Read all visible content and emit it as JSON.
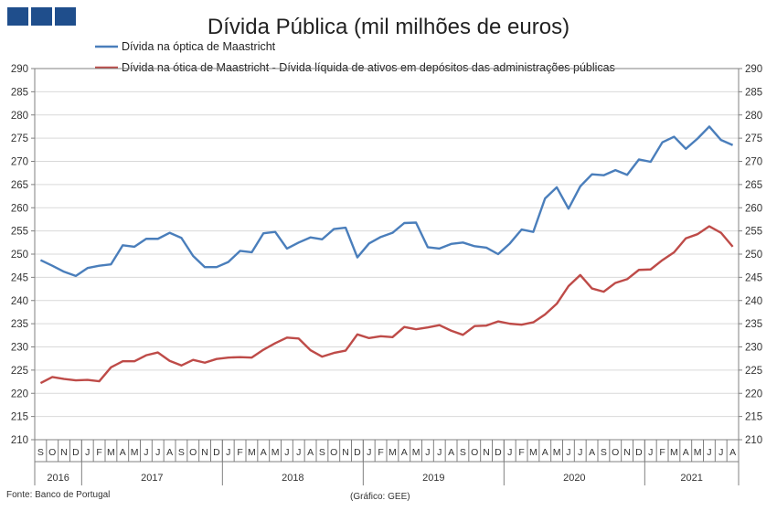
{
  "brand": {
    "logo_icon": "three-blue-squares-icon",
    "color": "#1f4e8c"
  },
  "footer": {
    "source": "Fonte: Banco de Portugal",
    "credit": "(Gráfico: GEE)"
  },
  "chart_data": {
    "type": "line",
    "title": "Dívida Pública (mil milhões de euros)",
    "ylim": [
      210,
      290
    ],
    "yticks": [
      210,
      215,
      220,
      225,
      230,
      235,
      240,
      245,
      250,
      255,
      260,
      265,
      270,
      275,
      280,
      285,
      290
    ],
    "grid": true,
    "legend_position": "top",
    "months": [
      "S",
      "O",
      "N",
      "D",
      "J",
      "F",
      "M",
      "A",
      "M",
      "J",
      "J",
      "A",
      "S",
      "O",
      "N",
      "D",
      "J",
      "F",
      "M",
      "A",
      "M",
      "J",
      "J",
      "A",
      "S",
      "O",
      "N",
      "D",
      "J",
      "F",
      "M",
      "A",
      "M",
      "J",
      "J",
      "A",
      "S",
      "O",
      "N",
      "D",
      "J",
      "F",
      "M",
      "A",
      "M",
      "J",
      "J",
      "A",
      "S",
      "O",
      "N",
      "D",
      "J",
      "F",
      "M",
      "A",
      "M",
      "J",
      "J",
      "A"
    ],
    "years": [
      {
        "label": "2016",
        "count": 4
      },
      {
        "label": "2017",
        "count": 12
      },
      {
        "label": "2018",
        "count": 12
      },
      {
        "label": "2019",
        "count": 12
      },
      {
        "label": "2020",
        "count": 12
      },
      {
        "label": "2021",
        "count": 8
      }
    ],
    "series": [
      {
        "name": "Dívida na óptica de Maastricht",
        "color": "#4a7ebb",
        "values": [
          248.7,
          247.5,
          246.2,
          245.3,
          247.0,
          247.5,
          247.8,
          251.9,
          251.6,
          253.3,
          253.3,
          254.6,
          253.5,
          249.6,
          247.2,
          247.2,
          248.3,
          250.7,
          250.4,
          254.5,
          254.8,
          251.2,
          252.5,
          253.6,
          253.2,
          255.4,
          255.7,
          249.3,
          252.3,
          253.7,
          254.6,
          256.7,
          256.8,
          251.5,
          251.2,
          252.2,
          252.5,
          251.7,
          251.4,
          250.0,
          252.3,
          255.3,
          254.8,
          262.0,
          264.4,
          259.8,
          264.6,
          267.2,
          267.0,
          268.1,
          267.1,
          270.4,
          269.9,
          274.1,
          275.3,
          272.7,
          274.9,
          277.5,
          274.6,
          273.5
        ]
      },
      {
        "name": "Dívida na ótica de Maastricht - Dívida líquida de ativos em depósitos das administrações públicas",
        "color": "#be4b48",
        "values": [
          222.2,
          223.5,
          223.1,
          222.8,
          222.9,
          222.6,
          225.6,
          226.9,
          226.9,
          228.2,
          228.8,
          227.0,
          226.0,
          227.2,
          226.6,
          227.4,
          227.7,
          227.8,
          227.7,
          229.4,
          230.8,
          232.0,
          231.8,
          229.3,
          227.9,
          228.7,
          229.2,
          232.7,
          231.9,
          232.3,
          232.1,
          234.3,
          233.8,
          234.2,
          234.7,
          233.5,
          232.6,
          234.5,
          234.6,
          235.5,
          235.0,
          234.8,
          235.3,
          237.0,
          239.3,
          243.1,
          245.5,
          242.6,
          241.9,
          243.8,
          244.6,
          246.6,
          246.7,
          248.7,
          250.4,
          253.4,
          254.3,
          256.0,
          254.6,
          251.6
        ]
      }
    ]
  }
}
